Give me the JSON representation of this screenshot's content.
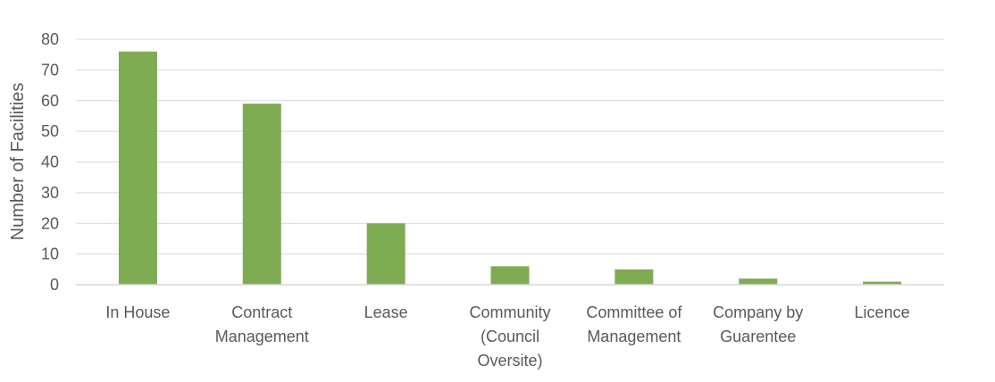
{
  "chart_data": {
    "type": "bar",
    "title": "",
    "xlabel": "",
    "ylabel": "Number of Facilities",
    "ylim": [
      0,
      80
    ],
    "yticks": [
      0,
      10,
      20,
      30,
      40,
      50,
      60,
      70,
      80
    ],
    "grid": true,
    "legend": "none",
    "bar_color": "#7fab52",
    "categories": [
      [
        "In House"
      ],
      [
        "Contract",
        "Management"
      ],
      [
        "Lease"
      ],
      [
        "Community",
        "(Council",
        "Oversite)"
      ],
      [
        "Committee of",
        "Management"
      ],
      [
        "Company by",
        "Guarentee"
      ],
      [
        "Licence"
      ]
    ],
    "values": [
      76,
      59,
      20,
      6,
      5,
      2,
      1
    ]
  }
}
